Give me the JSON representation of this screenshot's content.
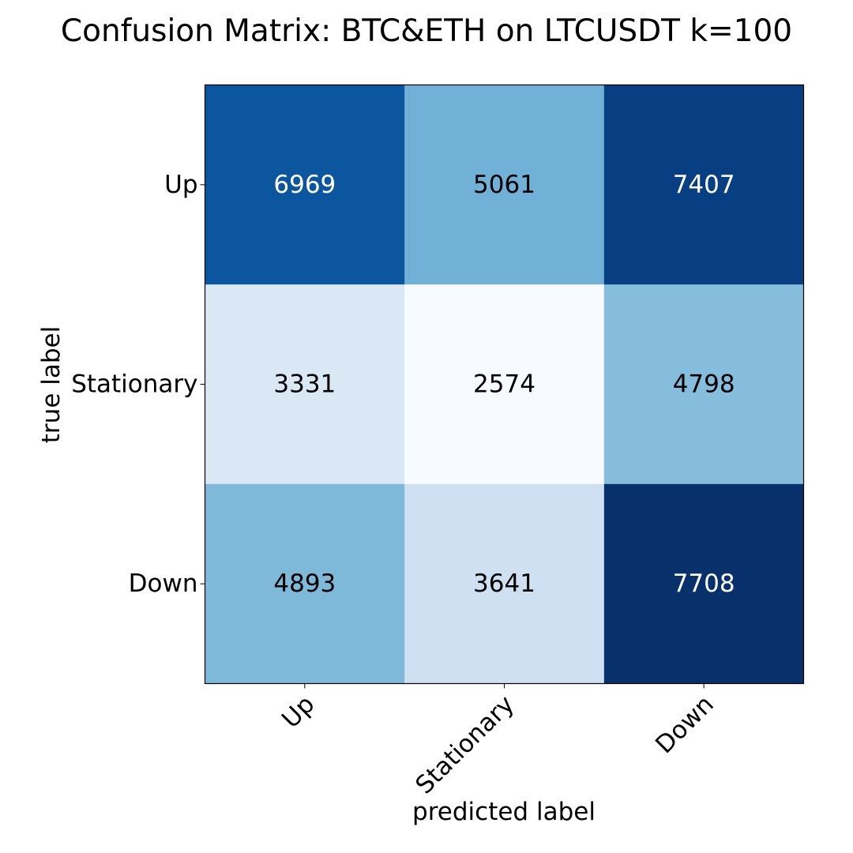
{
  "chart_data": {
    "type": "heatmap",
    "title": "Confusion Matrix: BTC&ETH on LTCUSDT k=100",
    "xlabel": "predicted label",
    "ylabel": "true label",
    "x_categories": [
      "Up",
      "Stationary",
      "Down"
    ],
    "y_categories": [
      "Up",
      "Stationary",
      "Down"
    ],
    "values": [
      [
        6969,
        5061,
        7407
      ],
      [
        3331,
        2574,
        4798
      ],
      [
        4893,
        3641,
        7708
      ]
    ],
    "colormap": "Blues",
    "vmin": 2574,
    "vmax": 7708,
    "grid": false,
    "colors": {
      "low": "#f7fbff",
      "high": "#08306b",
      "text_dark": "#000000",
      "text_light": "#ffffff"
    }
  }
}
